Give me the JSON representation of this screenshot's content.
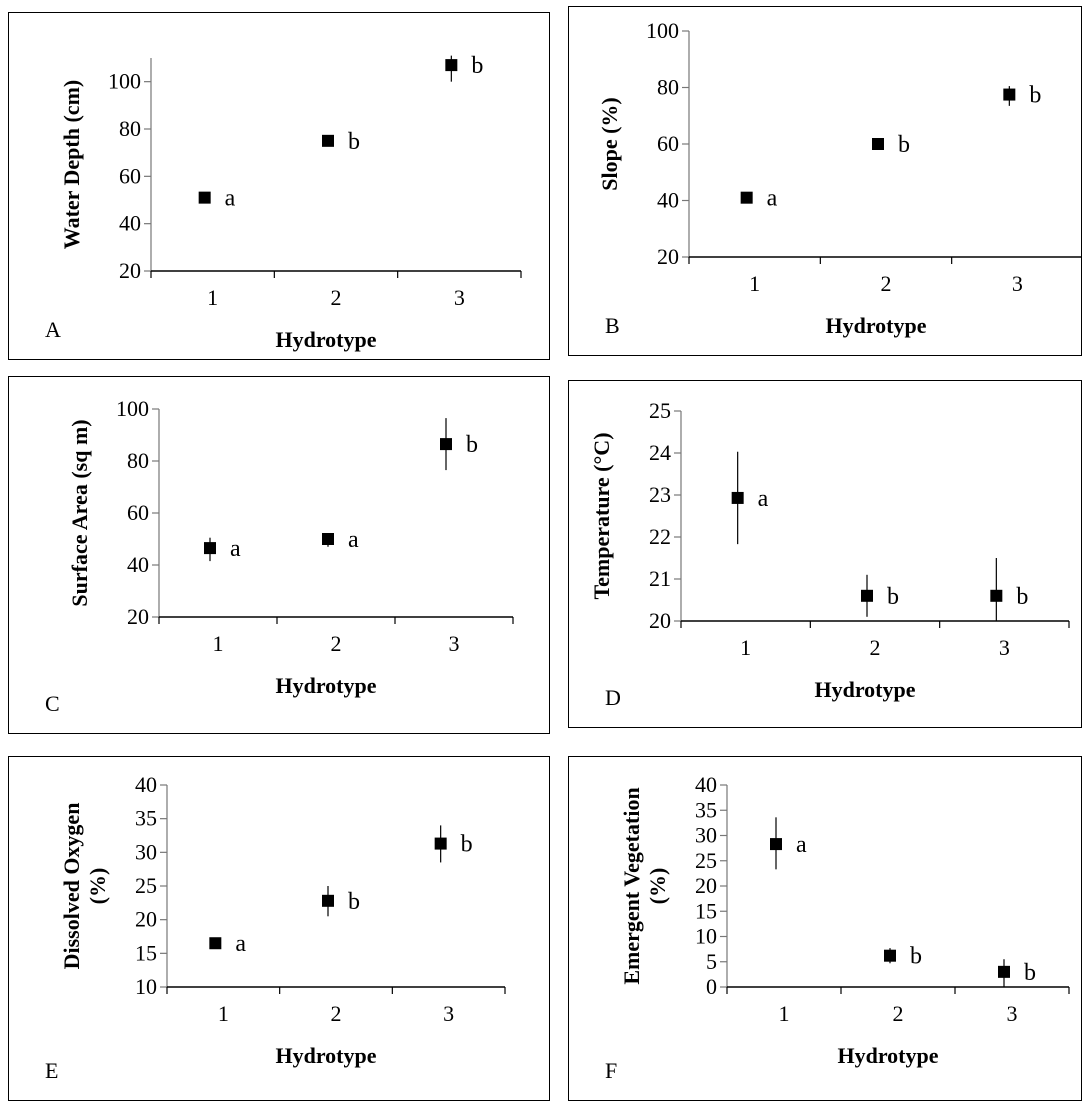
{
  "chart_data": [
    {
      "type": "scatter",
      "panel": "A",
      "xlabel": "Hydrotype",
      "ylabel": [
        "Water Depth (cm)"
      ],
      "ylim": [
        20,
        110
      ],
      "yticks": [
        20,
        40,
        60,
        80,
        100
      ],
      "categories": [
        "1",
        "2",
        "3"
      ],
      "values": [
        51,
        75,
        107
      ],
      "err": [
        [
          1,
          1
        ],
        [
          1,
          1
        ],
        [
          7,
          4
        ]
      ],
      "sig": [
        "a",
        "b",
        "b"
      ]
    },
    {
      "type": "scatter",
      "panel": "B",
      "xlabel": "Hydrotype",
      "ylabel": [
        "Slope (%)"
      ],
      "ylim": [
        20,
        100
      ],
      "yticks": [
        20,
        40,
        60,
        80,
        100
      ],
      "categories": [
        "1",
        "2",
        "3"
      ],
      "values": [
        41,
        60,
        77.5
      ],
      "err": [
        [
          1,
          1
        ],
        [
          1,
          1
        ],
        [
          4,
          3
        ]
      ],
      "sig": [
        "a",
        "b",
        "b"
      ]
    },
    {
      "type": "scatter",
      "panel": "C",
      "xlabel": "Hydrotype",
      "ylabel": [
        "Surface Area (sq m)"
      ],
      "ylim": [
        20,
        100
      ],
      "yticks": [
        20,
        40,
        60,
        80,
        100
      ],
      "categories": [
        "1",
        "2",
        "3"
      ],
      "values": [
        46.5,
        50,
        86.5
      ],
      "err": [
        [
          5,
          4
        ],
        [
          3,
          2
        ],
        [
          10,
          10
        ]
      ],
      "sig": [
        "a",
        "a",
        "b"
      ]
    },
    {
      "type": "scatter",
      "panel": "D",
      "xlabel": "Hydrotype",
      "ylabel": [
        "Temperature (°C)"
      ],
      "ylim": [
        20,
        25
      ],
      "yticks": [
        20,
        21,
        22,
        23,
        24,
        25
      ],
      "categories": [
        "1",
        "2",
        "3"
      ],
      "values": [
        22.93,
        20.6,
        20.6
      ],
      "err": [
        [
          1.1,
          1.1
        ],
        [
          0.5,
          0.5
        ],
        [
          0.6,
          0.9
        ]
      ],
      "sig": [
        "a",
        "b",
        "b"
      ]
    },
    {
      "type": "scatter",
      "panel": "E",
      "xlabel": "Hydrotype",
      "ylabel": [
        "Dissolved Oxygen",
        "(%)"
      ],
      "ylim": [
        10,
        40
      ],
      "yticks": [
        10,
        15,
        20,
        25,
        30,
        35,
        40
      ],
      "categories": [
        "1",
        "2",
        "3"
      ],
      "values": [
        16.5,
        22.8,
        31.3
      ],
      "err": [
        [
          0.5,
          0.5
        ],
        [
          2.3,
          2.2
        ],
        [
          2.8,
          2.7
        ]
      ],
      "sig": [
        "a",
        "b",
        "b"
      ]
    },
    {
      "type": "scatter",
      "panel": "F",
      "xlabel": "Hydrotype",
      "ylabel": [
        "Emergent Vegetation",
        "(%)"
      ],
      "ylim": [
        0,
        40
      ],
      "yticks": [
        0,
        5,
        10,
        15,
        20,
        25,
        30,
        35,
        40
      ],
      "categories": [
        "1",
        "2",
        "3"
      ],
      "values": [
        28.3,
        6.2,
        3.0
      ],
      "err": [
        [
          5,
          5.3
        ],
        [
          1.5,
          1.5
        ],
        [
          3,
          2.5
        ]
      ],
      "sig": [
        "a",
        "b",
        "b"
      ]
    }
  ]
}
